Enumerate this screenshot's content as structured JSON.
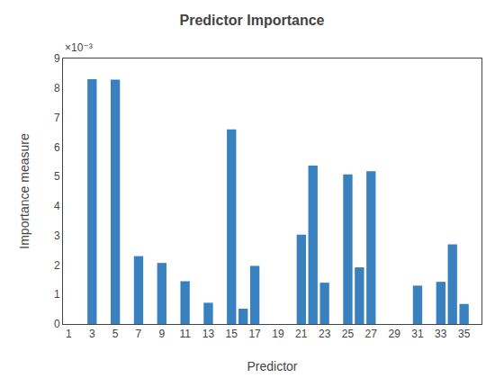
{
  "chart_data": {
    "type": "bar",
    "title": "Predictor Importance",
    "xlabel": "Predictor",
    "ylabel": "Importance measure",
    "annotations": [
      "×10⁻³"
    ],
    "x": [
      3,
      5,
      7,
      9,
      11,
      13,
      15,
      16,
      17,
      21,
      22,
      23,
      25,
      26,
      27,
      31,
      33,
      34,
      35
    ],
    "values": [
      0.0083,
      0.00828,
      0.0023,
      0.00207,
      0.00145,
      0.00072,
      0.0066,
      0.00052,
      0.00197,
      0.00303,
      0.00537,
      0.0014,
      0.00507,
      0.00192,
      0.00518,
      0.0013,
      0.00143,
      0.0027,
      0.00068
    ],
    "color": "#3880be",
    "xlim": [
      0.5,
      36.5
    ],
    "xticks": [
      1,
      3,
      5,
      7,
      9,
      11,
      13,
      15,
      17,
      19,
      21,
      23,
      25,
      27,
      29,
      31,
      33,
      35
    ],
    "ylim": [
      0,
      0.009
    ],
    "yticks": [
      0,
      {
        "value": 0.001,
        "label": "1"
      },
      {
        "value": 0.002,
        "label": "2"
      },
      {
        "value": 0.003,
        "label": "3"
      },
      {
        "value": 0.004,
        "label": "4"
      },
      {
        "value": 0.005,
        "label": "5"
      },
      {
        "value": 0.006,
        "label": "6"
      },
      {
        "value": 0.007,
        "label": "7"
      },
      {
        "value": 0.008,
        "label": "8"
      },
      {
        "value": 0.009,
        "label": "9"
      }
    ],
    "grid": false
  }
}
